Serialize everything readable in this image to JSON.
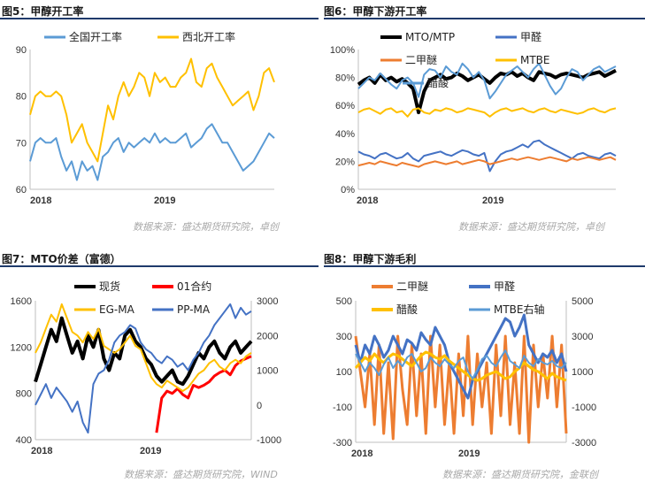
{
  "panels": [
    {
      "title": "图5：甲醇开工率",
      "source": "数据来源：盛达期货研究院，卓创"
    },
    {
      "title": "图6：甲醇下游开工率",
      "source": "数据来源：盛达期货研究院，卓创"
    },
    {
      "title": "图7：MTO价差（富德）",
      "source": "数据来源：盛达期货研究院，WIND"
    },
    {
      "title": "图8：甲醇下游毛利",
      "source": "数据来源：盛达期货研究院，金联创"
    }
  ],
  "chart_data": [
    {
      "type": "line",
      "x_ticks": [
        "2018",
        "2019"
      ],
      "ylim": [
        60,
        90
      ],
      "y_ticks": [
        "60",
        "70",
        "80",
        "90"
      ],
      "series": [
        {
          "name": "全国开工率",
          "color": "#5b9bd5",
          "values": [
            66,
            70,
            71,
            70,
            70,
            71,
            67,
            64,
            66,
            62,
            66,
            64,
            65,
            62,
            67,
            68,
            70,
            71,
            68,
            70,
            69,
            70,
            71,
            70,
            72,
            70,
            71,
            70,
            70,
            71,
            72,
            69,
            70,
            71,
            73,
            74,
            72,
            70,
            70,
            68,
            66,
            64,
            65,
            66,
            68,
            70,
            72,
            71
          ]
        },
        {
          "name": "西北开工率",
          "color": "#ffc000",
          "values": [
            76,
            80,
            81,
            80,
            80,
            81,
            80,
            76,
            70,
            72,
            74,
            70,
            68,
            66,
            72,
            78,
            75,
            80,
            83,
            80,
            82,
            85,
            84,
            80,
            85,
            83,
            84,
            82,
            82,
            84,
            85,
            88,
            83,
            82,
            86,
            87,
            84,
            82,
            80,
            78,
            79,
            80,
            81,
            77,
            80,
            85,
            86,
            83
          ]
        }
      ]
    },
    {
      "type": "line",
      "x_ticks": [
        "2018",
        "2019"
      ],
      "ylim": [
        0,
        100
      ],
      "y_ticks": [
        "0%",
        "20%",
        "40%",
        "60%",
        "80%",
        "100%"
      ],
      "series": [
        {
          "name": "MTO/MTP",
          "color": "#000000",
          "values": [
            75,
            78,
            80,
            76,
            82,
            78,
            80,
            77,
            79,
            76,
            72,
            55,
            70,
            78,
            80,
            82,
            79,
            80,
            83,
            81,
            78,
            80,
            82,
            79,
            76,
            80,
            83,
            82,
            84,
            81,
            83,
            80,
            78,
            84,
            83,
            82,
            80,
            82,
            83,
            82,
            81,
            80,
            82,
            83,
            84,
            81,
            83,
            85
          ]
        },
        {
          "name": "甲醛",
          "color": "#4472c4",
          "values": [
            27,
            25,
            24,
            22,
            25,
            26,
            24,
            22,
            23,
            26,
            22,
            20,
            24,
            25,
            26,
            27,
            25,
            24,
            26,
            28,
            27,
            25,
            24,
            26,
            13,
            20,
            25,
            27,
            28,
            30,
            32,
            30,
            34,
            35,
            32,
            30,
            28,
            26,
            24,
            22,
            25,
            26,
            24,
            23,
            22,
            25,
            26,
            24
          ]
        },
        {
          "name": "二甲醚",
          "color": "#ed7d31",
          "values": [
            17,
            18,
            19,
            18,
            20,
            19,
            18,
            17,
            19,
            18,
            17,
            16,
            18,
            19,
            20,
            19,
            18,
            19,
            20,
            18,
            19,
            20,
            21,
            20,
            18,
            19,
            20,
            21,
            22,
            21,
            22,
            23,
            22,
            21,
            22,
            23,
            22,
            21,
            20,
            22,
            21,
            22,
            23,
            22,
            21,
            22,
            23,
            21
          ]
        },
        {
          "name": "MTBE",
          "color": "#ffc000",
          "values": [
            55,
            57,
            58,
            56,
            54,
            57,
            58,
            55,
            56,
            52,
            57,
            58,
            55,
            54,
            57,
            56,
            58,
            57,
            55,
            56,
            58,
            57,
            56,
            55,
            52,
            55,
            57,
            58,
            56,
            57,
            58,
            56,
            55,
            57,
            58,
            56,
            55,
            57,
            56,
            55,
            54,
            55,
            57,
            58,
            56,
            55,
            57,
            58
          ]
        },
        {
          "name": "醋酸",
          "color": "#5b9bd5",
          "values": [
            72,
            76,
            80,
            78,
            83,
            79,
            75,
            72,
            78,
            80,
            76,
            66,
            82,
            86,
            85,
            80,
            88,
            84,
            82,
            90,
            86,
            80,
            84,
            78,
            65,
            70,
            76,
            82,
            85,
            88,
            84,
            80,
            86,
            90,
            82,
            74,
            68,
            72,
            80,
            86,
            84,
            78,
            82,
            86,
            88,
            84,
            86,
            88
          ]
        }
      ]
    },
    {
      "type": "line",
      "x_ticks": [
        "2018",
        "2019"
      ],
      "ylim": [
        400,
        1600
      ],
      "y_ticks": [
        "400",
        "800",
        "1200",
        "1600"
      ],
      "y2lim": [
        -1000,
        3000
      ],
      "y2_ticks": [
        "-1000",
        "0",
        "1000",
        "2000",
        "3000"
      ],
      "series": [
        {
          "name": "现货",
          "color": "#000000",
          "axis": "left",
          "values": [
            900,
            1050,
            1200,
            1350,
            1250,
            1450,
            1300,
            1150,
            1250,
            1100,
            1300,
            1200,
            1350,
            1100,
            1000,
            1150,
            1100,
            1300,
            1350,
            1250,
            1200,
            1100,
            1050,
            950,
            900,
            950,
            1000,
            900,
            880,
            950,
            1050,
            1150,
            1100,
            1200,
            1250,
            1150,
            1100,
            1200,
            1250,
            1150,
            1200,
            1250
          ]
        },
        {
          "name": "01合约",
          "color": "#ff0000",
          "axis": "left",
          "values": [
            null,
            null,
            null,
            null,
            null,
            null,
            null,
            null,
            null,
            null,
            null,
            null,
            null,
            null,
            null,
            null,
            null,
            null,
            null,
            null,
            null,
            null,
            null,
            460,
            760,
            820,
            800,
            840,
            790,
            760,
            870,
            850,
            870,
            900,
            950,
            980,
            1000,
            960,
            1040,
            1080,
            1100,
            1120
          ]
        },
        {
          "name": "EG-MA",
          "color": "#ffc000",
          "axis": "right",
          "values": [
            1500,
            1800,
            2200,
            2600,
            2400,
            2900,
            2500,
            2100,
            2000,
            1800,
            2100,
            1900,
            2200,
            1700,
            1600,
            1500,
            1600,
            1800,
            2000,
            1700,
            1600,
            1200,
            800,
            600,
            500,
            700,
            600,
            500,
            400,
            500,
            700,
            900,
            1000,
            1200,
            1300,
            1100,
            1000,
            1200,
            1300,
            1200,
            1400,
            1500
          ]
        },
        {
          "name": "PP-MA",
          "color": "#4472c4",
          "axis": "right",
          "values": [
            0,
            300,
            600,
            200,
            500,
            300,
            100,
            -200,
            100,
            -500,
            -800,
            600,
            900,
            1000,
            1300,
            1800,
            2000,
            2100,
            2300,
            2200,
            1800,
            1600,
            1500,
            1300,
            1200,
            1400,
            1300,
            1100,
            1200,
            1000,
            1300,
            1500,
            1800,
            2000,
            2300,
            2500,
            2700,
            2900,
            2500,
            2800,
            2600,
            2700
          ]
        }
      ]
    },
    {
      "type": "line",
      "x_ticks": [
        "2018",
        "2019"
      ],
      "ylim": [
        -300,
        500
      ],
      "y_ticks": [
        "-300",
        "-100",
        "100",
        "300",
        "500"
      ],
      "y2lim": [
        -3000,
        5000
      ],
      "y2_ticks": [
        "-3000",
        "-1000",
        "1000",
        "3000",
        "5000"
      ],
      "series": [
        {
          "name": "二甲醚",
          "color": "#ed7d31",
          "axis": "left",
          "values": [
            300,
            100,
            -100,
            200,
            -200,
            250,
            -250,
            150,
            -280,
            300,
            0,
            -200,
            250,
            -150,
            200,
            -250,
            300,
            -100,
            250,
            -200,
            150,
            -250,
            200,
            -150,
            300,
            -200,
            200,
            -100,
            150,
            -250,
            250,
            -150,
            300,
            -200,
            150,
            -250,
            300,
            -300,
            250,
            -100,
            200,
            -50,
            300,
            -100,
            250,
            -250
          ]
        },
        {
          "name": "甲醛",
          "color": "#4472c4",
          "axis": "left",
          "values": [
            250,
            150,
            250,
            200,
            300,
            250,
            180,
            220,
            300,
            250,
            200,
            280,
            260,
            220,
            320,
            280,
            250,
            350,
            300,
            250,
            150,
            100,
            50,
            0,
            -50,
            50,
            100,
            150,
            200,
            250,
            300,
            350,
            400,
            380,
            300,
            350,
            420,
            250,
            200,
            150,
            200,
            180,
            220,
            150,
            200,
            100
          ]
        },
        {
          "name": "醋酸",
          "color": "#ffc000",
          "axis": "left",
          "values": [
            120,
            150,
            180,
            160,
            200,
            170,
            150,
            180,
            200,
            190,
            170,
            150,
            130,
            160,
            190,
            210,
            200,
            180,
            170,
            190,
            160,
            140,
            120,
            100,
            80,
            60,
            50,
            60,
            80,
            90,
            100,
            80,
            60,
            70,
            100,
            120,
            150,
            130,
            110,
            100,
            80,
            60,
            90,
            70,
            60,
            50
          ]
        },
        {
          "name": "MTBE右轴",
          "color": "#5b9bd5",
          "axis": "right",
          "values": [
            2000,
            1500,
            1000,
            1500,
            1200,
            800,
            1400,
            1800,
            1200,
            1600,
            1300,
            1800,
            2000,
            1500,
            1000,
            1200,
            1800,
            1500,
            1300,
            1700,
            1400,
            1200,
            1600,
            1800,
            1000,
            600,
            1100,
            1700,
            1900,
            1500,
            1300,
            1800,
            2200,
            1600,
            1400,
            1200,
            1900,
            1500,
            1300,
            1700,
            1500,
            1400,
            1600,
            1300,
            1200,
            1500
          ]
        }
      ]
    }
  ]
}
